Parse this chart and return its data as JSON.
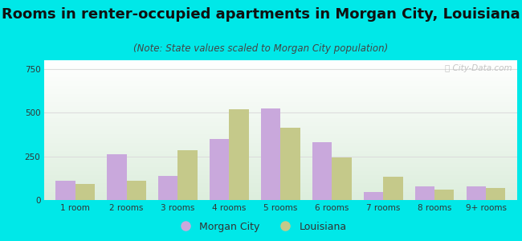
{
  "title": "Rooms in renter-occupied apartments in Morgan City, Louisiana",
  "subtitle": "(Note: State values scaled to Morgan City population)",
  "categories": [
    "1 room",
    "2 rooms",
    "3 rooms",
    "4 rooms",
    "5 rooms",
    "6 rooms",
    "7 rooms",
    "8 rooms",
    "9+ rooms"
  ],
  "morgan_city": [
    110,
    260,
    140,
    350,
    525,
    330,
    45,
    80,
    80
  ],
  "louisiana": [
    90,
    110,
    285,
    520,
    415,
    245,
    135,
    60,
    70
  ],
  "morgan_city_color": "#c9a8dc",
  "louisiana_color": "#c5c98a",
  "bar_width": 0.38,
  "ylim": [
    0,
    800
  ],
  "yticks": [
    0,
    250,
    500,
    750
  ],
  "bg_outer": "#00e8e8",
  "grid_color": "#dddddd",
  "title_fontsize": 13,
  "subtitle_fontsize": 8.5,
  "tick_fontsize": 7.5,
  "legend_fontsize": 9,
  "title_color": "#111111",
  "subtitle_color": "#444444",
  "tick_color": "#333333"
}
